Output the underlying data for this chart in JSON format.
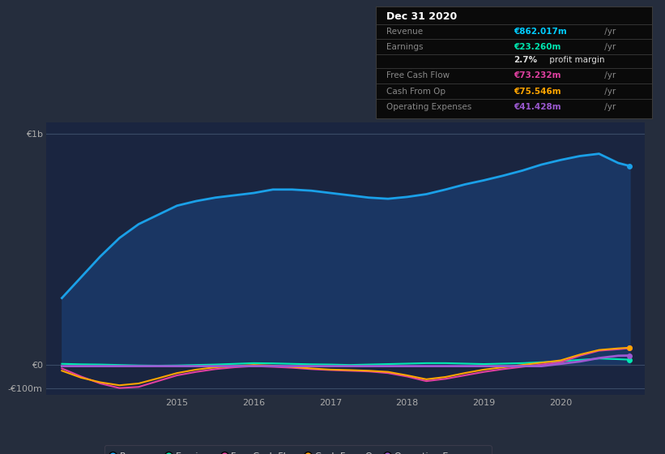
{
  "background_color": "#252d3d",
  "plot_bg_color": "#1a2540",
  "title": "Dec 31 2020",
  "info_box": {
    "bg_color": "#0a0a0a",
    "border_color": "#3a3a3a",
    "rows": [
      {
        "label": "Revenue",
        "value": "€862.017m",
        "value_color": "#00ccff"
      },
      {
        "label": "Earnings",
        "value": "€23.260m",
        "value_color": "#00e8b0"
      },
      {
        "label": "",
        "value": "2.7% profit margin",
        "value_color": "#dddddd"
      },
      {
        "label": "Free Cash Flow",
        "value": "€73.232m",
        "value_color": "#e040a0"
      },
      {
        "label": "Cash From Op",
        "value": "€75.546m",
        "value_color": "#ffa500"
      },
      {
        "label": "Operating Expenses",
        "value": "€41.428m",
        "value_color": "#9b59d0"
      }
    ]
  },
  "ylim": [
    -130,
    1050
  ],
  "yticks_labels": [
    "€1b",
    "€0",
    "-€100m"
  ],
  "yticks_values": [
    1000,
    0,
    -100
  ],
  "grid_color": "#2e3d58",
  "zero_line_color": "#3a4a65",
  "series": {
    "Revenue": {
      "color": "#1aa0e8",
      "fill": true,
      "fill_color": "#1a3a6a",
      "fill_alpha": 0.85,
      "linewidth": 2.0,
      "x": [
        2013.5,
        2013.75,
        2014.0,
        2014.25,
        2014.5,
        2014.75,
        2015.0,
        2015.25,
        2015.5,
        2015.75,
        2016.0,
        2016.25,
        2016.5,
        2016.75,
        2017.0,
        2017.25,
        2017.5,
        2017.75,
        2018.0,
        2018.25,
        2018.5,
        2018.75,
        2019.0,
        2019.25,
        2019.5,
        2019.75,
        2020.0,
        2020.25,
        2020.5,
        2020.75,
        2020.9
      ],
      "y": [
        290,
        380,
        470,
        550,
        610,
        650,
        690,
        710,
        725,
        735,
        745,
        760,
        760,
        755,
        745,
        735,
        725,
        720,
        728,
        740,
        760,
        782,
        800,
        820,
        842,
        868,
        888,
        905,
        915,
        875,
        862
      ]
    },
    "Earnings": {
      "color": "#00e8b0",
      "fill": false,
      "linewidth": 1.5,
      "x": [
        2013.5,
        2013.75,
        2014.0,
        2014.25,
        2014.5,
        2014.75,
        2015.0,
        2015.25,
        2015.5,
        2015.75,
        2016.0,
        2016.25,
        2016.5,
        2016.75,
        2017.0,
        2017.25,
        2017.5,
        2017.75,
        2018.0,
        2018.25,
        2018.5,
        2018.75,
        2019.0,
        2019.25,
        2019.5,
        2019.75,
        2020.0,
        2020.25,
        2020.5,
        2020.75,
        2020.9
      ],
      "y": [
        5,
        3,
        2,
        0,
        -2,
        -3,
        -2,
        0,
        2,
        5,
        8,
        7,
        5,
        3,
        2,
        0,
        2,
        4,
        6,
        8,
        8,
        6,
        4,
        6,
        8,
        12,
        16,
        22,
        28,
        25,
        23
      ]
    },
    "Free Cash Flow": {
      "color": "#e040a0",
      "fill": false,
      "linewidth": 1.5,
      "x": [
        2013.5,
        2013.75,
        2014.0,
        2014.25,
        2014.5,
        2014.75,
        2015.0,
        2015.25,
        2015.5,
        2015.75,
        2016.0,
        2016.25,
        2016.5,
        2016.75,
        2017.0,
        2017.25,
        2017.5,
        2017.75,
        2018.0,
        2018.25,
        2018.5,
        2018.75,
        2019.0,
        2019.25,
        2019.5,
        2019.75,
        2020.0,
        2020.25,
        2020.5,
        2020.75,
        2020.9
      ],
      "y": [
        -15,
        -50,
        -80,
        -100,
        -95,
        -70,
        -45,
        -30,
        -18,
        -10,
        -5,
        -8,
        -12,
        -18,
        -22,
        -25,
        -28,
        -35,
        -50,
        -70,
        -60,
        -45,
        -30,
        -18,
        -8,
        2,
        12,
        40,
        62,
        68,
        73
      ]
    },
    "Cash From Op": {
      "color": "#ffa500",
      "fill": false,
      "linewidth": 1.5,
      "x": [
        2013.5,
        2013.75,
        2014.0,
        2014.25,
        2014.5,
        2014.75,
        2015.0,
        2015.25,
        2015.5,
        2015.75,
        2016.0,
        2016.25,
        2016.5,
        2016.75,
        2017.0,
        2017.25,
        2017.5,
        2017.75,
        2018.0,
        2018.25,
        2018.5,
        2018.75,
        2019.0,
        2019.25,
        2019.5,
        2019.75,
        2020.0,
        2020.25,
        2020.5,
        2020.75,
        2020.9
      ],
      "y": [
        -25,
        -55,
        -75,
        -88,
        -80,
        -58,
        -35,
        -20,
        -10,
        -5,
        0,
        -3,
        -8,
        -15,
        -20,
        -22,
        -25,
        -30,
        -45,
        -62,
        -52,
        -35,
        -20,
        -10,
        0,
        10,
        20,
        45,
        65,
        72,
        75
      ]
    },
    "Operating Expenses": {
      "color": "#9b59d0",
      "fill": false,
      "linewidth": 2.0,
      "x": [
        2013.5,
        2013.75,
        2014.0,
        2014.25,
        2014.5,
        2014.75,
        2015.0,
        2015.25,
        2015.5,
        2015.75,
        2016.0,
        2016.25,
        2016.5,
        2016.75,
        2017.0,
        2017.25,
        2017.5,
        2017.75,
        2018.0,
        2018.25,
        2018.5,
        2018.75,
        2019.0,
        2019.25,
        2019.5,
        2019.75,
        2020.0,
        2020.25,
        2020.5,
        2020.75,
        2020.9
      ],
      "y": [
        -5,
        -5,
        -5,
        -5,
        -5,
        -5,
        -5,
        -5,
        -5,
        -5,
        -5,
        -5,
        -5,
        -5,
        -5,
        -5,
        -5,
        -5,
        -5,
        -5,
        -5,
        -5,
        -5,
        -5,
        -5,
        -5,
        5,
        15,
        30,
        40,
        41
      ]
    }
  },
  "legend": [
    {
      "label": "Revenue",
      "color": "#1aa0e8"
    },
    {
      "label": "Earnings",
      "color": "#00e8b0"
    },
    {
      "label": "Free Cash Flow",
      "color": "#e040a0"
    },
    {
      "label": "Cash From Op",
      "color": "#ffa500"
    },
    {
      "label": "Operating Expenses",
      "color": "#9b59d0"
    }
  ],
  "xlim": [
    2013.3,
    2021.1
  ],
  "xticks": [
    2015,
    2016,
    2017,
    2018,
    2019,
    2020
  ],
  "xtick_labels": [
    "2015",
    "2016",
    "2017",
    "2018",
    "2019",
    "2020"
  ]
}
